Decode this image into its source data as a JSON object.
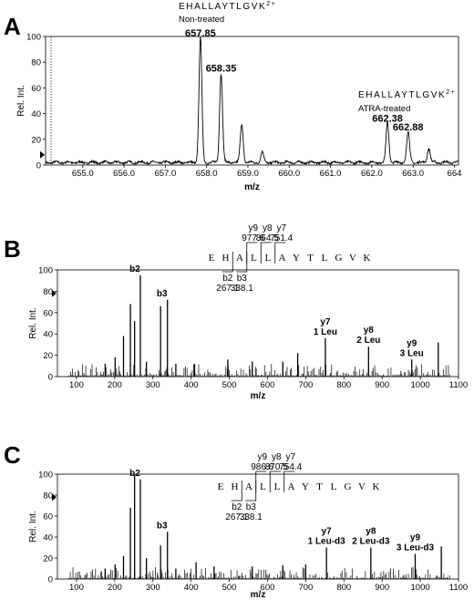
{
  "chart_data": [
    {
      "type": "line",
      "panel": "A",
      "xlabel": "m/z",
      "ylabel": "Rel. Int.",
      "xlim": [
        654.1,
        664.1
      ],
      "ylim": [
        0,
        100
      ],
      "xticks": [
        "655.0",
        "656.0",
        "657.0",
        "658.0",
        "659.0",
        "660.0",
        "661.0",
        "662.0",
        "663.0",
        "664"
      ],
      "yticks": [
        "0",
        "20",
        "40",
        "60",
        "80",
        "100"
      ],
      "peaks": [
        {
          "x": 657.85,
          "y": 97,
          "label": "657.85"
        },
        {
          "x": 658.35,
          "y": 70,
          "label": "658.35"
        },
        {
          "x": 658.85,
          "y": 30,
          "label": ""
        },
        {
          "x": 659.35,
          "y": 8,
          "label": ""
        },
        {
          "x": 662.38,
          "y": 31,
          "label": "662.38"
        },
        {
          "x": 662.88,
          "y": 24,
          "label": "662.88"
        },
        {
          "x": 663.38,
          "y": 11,
          "label": ""
        }
      ],
      "annotations": [
        {
          "peptide": "EHALLAYTLGVK",
          "charge": "2+",
          "condition": "Non-treated"
        },
        {
          "peptide": "EHALLAYTLGVK",
          "charge": "2+",
          "condition": "ATRA-treated"
        }
      ]
    },
    {
      "type": "bar",
      "panel": "B",
      "xlabel": "m/z",
      "ylabel": "Rel. Int.",
      "xlim": [
        50,
        1100
      ],
      "ylim": [
        0,
        100
      ],
      "xticks": [
        "100",
        "200",
        "300",
        "400",
        "500",
        "600",
        "700",
        "800",
        "900",
        "1000",
        "1100"
      ],
      "yticks": [
        "0",
        "20",
        "40",
        "60",
        "80",
        "100"
      ],
      "peaks": [
        {
          "x": 175,
          "y": 12
        },
        {
          "x": 201,
          "y": 18
        },
        {
          "x": 223,
          "y": 38
        },
        {
          "x": 241,
          "y": 68
        },
        {
          "x": 252,
          "y": 52
        },
        {
          "x": 267.1,
          "y": 95
        },
        {
          "x": 283,
          "y": 14
        },
        {
          "x": 320,
          "y": 66
        },
        {
          "x": 338.1,
          "y": 72
        },
        {
          "x": 360,
          "y": 12
        },
        {
          "x": 409,
          "y": 12
        },
        {
          "x": 496,
          "y": 16
        },
        {
          "x": 560,
          "y": 14
        },
        {
          "x": 640,
          "y": 14
        },
        {
          "x": 679,
          "y": 22
        },
        {
          "x": 751.4,
          "y": 36
        },
        {
          "x": 864.5,
          "y": 28
        },
        {
          "x": 977.6,
          "y": 16
        },
        {
          "x": 1047,
          "y": 32
        }
      ],
      "ion_labels": [
        {
          "x": 267.1,
          "y": 95,
          "text": [
            "b2"
          ]
        },
        {
          "x": 338.1,
          "y": 72,
          "text": [
            "b3"
          ]
        },
        {
          "x": 751.4,
          "y": 36,
          "text": [
            "y7",
            "1 Leu"
          ]
        },
        {
          "x": 864.5,
          "y": 28,
          "text": [
            "y8",
            "2 Leu"
          ]
        },
        {
          "x": 977.6,
          "y": 16,
          "text": [
            "y9",
            "3 Leu"
          ]
        }
      ],
      "fragment_map": {
        "sequence": [
          "E",
          "H",
          "A",
          "L",
          "L",
          "A",
          "Y",
          "T",
          "L",
          "G",
          "V",
          "K"
        ],
        "y_ions": [
          {
            "name": "y9",
            "mz": "977.6"
          },
          {
            "name": "y8",
            "mz": "864.5"
          },
          {
            "name": "y7",
            "mz": "751.4"
          }
        ],
        "b_ions": [
          {
            "name": "b2",
            "mz": "267.1"
          },
          {
            "name": "b3",
            "mz": "338.1"
          }
        ]
      }
    },
    {
      "type": "bar",
      "panel": "C",
      "xlabel": "m/z",
      "ylabel": "Rel. Int.",
      "xlim": [
        50,
        1100
      ],
      "ylim": [
        0,
        100
      ],
      "xticks": [
        "100",
        "200",
        "300",
        "400",
        "500",
        "600",
        "700",
        "800",
        "900",
        "1000",
        "1100"
      ],
      "yticks": [
        "0",
        "20",
        "40",
        "60",
        "80",
        "100"
      ],
      "peaks": [
        {
          "x": 175,
          "y": 10
        },
        {
          "x": 201,
          "y": 14
        },
        {
          "x": 223,
          "y": 22
        },
        {
          "x": 241,
          "y": 68
        },
        {
          "x": 252,
          "y": 99
        },
        {
          "x": 267.1,
          "y": 95
        },
        {
          "x": 283,
          "y": 20
        },
        {
          "x": 320,
          "y": 32
        },
        {
          "x": 338.1,
          "y": 45
        },
        {
          "x": 360,
          "y": 10
        },
        {
          "x": 413,
          "y": 16
        },
        {
          "x": 460,
          "y": 12
        },
        {
          "x": 560,
          "y": 12
        },
        {
          "x": 640,
          "y": 13
        },
        {
          "x": 700,
          "y": 14
        },
        {
          "x": 754.4,
          "y": 30
        },
        {
          "x": 870.5,
          "y": 30
        },
        {
          "x": 986.6,
          "y": 24
        },
        {
          "x": 1055,
          "y": 31
        }
      ],
      "ion_labels": [
        {
          "x": 267.1,
          "y": 95,
          "text": [
            "b2"
          ]
        },
        {
          "x": 338.1,
          "y": 45,
          "text": [
            "b3"
          ]
        },
        {
          "x": 754.4,
          "y": 30,
          "text": [
            "y7",
            "1 Leu-d3"
          ]
        },
        {
          "x": 870.5,
          "y": 30,
          "text": [
            "y8",
            "2 Leu-d3"
          ]
        },
        {
          "x": 986.6,
          "y": 24,
          "text": [
            "y9",
            "3 Leu-d3"
          ]
        }
      ],
      "fragment_map": {
        "sequence": [
          "E",
          "H",
          "A",
          "L",
          "L",
          "A",
          "Y",
          "T",
          "L",
          "G",
          "V",
          "K"
        ],
        "y_ions": [
          {
            "name": "y9",
            "mz": "986.6"
          },
          {
            "name": "y8",
            "mz": "870.5"
          },
          {
            "name": "y7",
            "mz": "754.4"
          }
        ],
        "b_ions": [
          {
            "name": "b2",
            "mz": "267.1"
          },
          {
            "name": "b3",
            "mz": "338.1"
          }
        ]
      }
    }
  ]
}
